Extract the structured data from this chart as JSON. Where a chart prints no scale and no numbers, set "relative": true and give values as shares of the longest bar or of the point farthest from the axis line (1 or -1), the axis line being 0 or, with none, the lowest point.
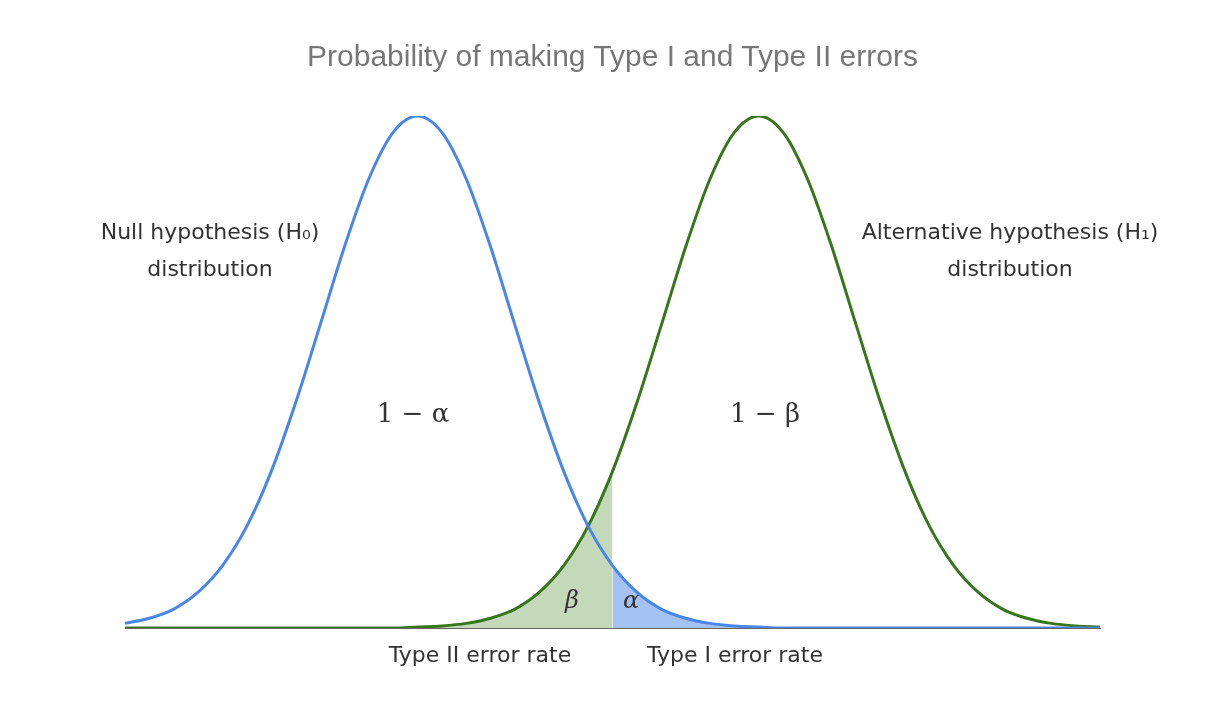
{
  "chart_data": {
    "type": "line",
    "title": "Probability of making Type I and Type II errors",
    "relative": true,
    "legend": false,
    "grid": false,
    "marker": "none",
    "categories": [
      null,
      null,
      null,
      null,
      null,
      null,
      null,
      null,
      null,
      null,
      null,
      null,
      null,
      null,
      null,
      null,
      null,
      null,
      null,
      null,
      null,
      null,
      null,
      null,
      null,
      null,
      null,
      null,
      null,
      null,
      null,
      null,
      null,
      null,
      null,
      null,
      null,
      null,
      null,
      null,
      null
    ],
    "series": [
      {
        "type": "area",
        "color": "#c3d9b9",
        "values": [
          0,
          0,
          0,
          0,
          0,
          0,
          0,
          0,
          0,
          0,
          0,
          0,
          0.002,
          0.004,
          0.009,
          0.019,
          0.037,
          0.07,
          0.122,
          0.199,
          0.306,
          null,
          null,
          null,
          null,
          null,
          null,
          null,
          null,
          null,
          null,
          null,
          null,
          null,
          null,
          null,
          null,
          null,
          null,
          null,
          null
        ]
      },
      {
        "type": "area",
        "color": "#a4c2f4",
        "values": [
          null,
          null,
          null,
          null,
          null,
          null,
          null,
          null,
          null,
          null,
          null,
          null,
          null,
          null,
          null,
          null,
          null,
          null,
          null,
          null,
          0.122,
          0.07,
          0.037,
          0.019,
          0.009,
          0.004,
          0.002,
          0,
          0,
          0,
          0,
          0,
          0,
          0,
          0,
          0,
          0,
          0,
          0,
          0,
          0
        ]
      },
      {
        "color": "#4a86e8",
        "values": [
          0.009,
          0.019,
          0.037,
          0.07,
          0.122,
          0.199,
          0.306,
          0.44,
          0.591,
          0.744,
          0.877,
          0.968,
          1,
          0.968,
          0.877,
          0.744,
          0.591,
          0.44,
          0.306,
          0.199,
          0.122,
          0.07,
          0.037,
          0.019,
          0.009,
          0.004,
          0.002,
          0,
          0,
          0,
          0,
          0,
          0,
          0,
          0,
          0,
          0,
          0,
          0,
          0,
          0
        ]
      },
      {
        "color": "#38761d",
        "values": [
          0,
          0,
          0,
          0,
          0,
          0,
          0,
          0,
          0,
          0,
          0,
          0,
          0.002,
          0.004,
          0.009,
          0.019,
          0.037,
          0.07,
          0.122,
          0.199,
          0.306,
          0.44,
          0.591,
          0.744,
          0.877,
          0.968,
          1,
          0.968,
          0.877,
          0.744,
          0.591,
          0.44,
          0.306,
          0.199,
          0.122,
          0.07,
          0.037,
          0.019,
          0.009,
          0.004,
          0.002
        ]
      }
    ],
    "annotations": [
      "Null hypothesis (H₀)\ndistribution",
      "Alternative hypothesis (H₁)\ndistribution",
      "1 − α",
      "1 − β",
      "β",
      "α",
      "Type II error rate",
      "Type I error rate"
    ]
  }
}
